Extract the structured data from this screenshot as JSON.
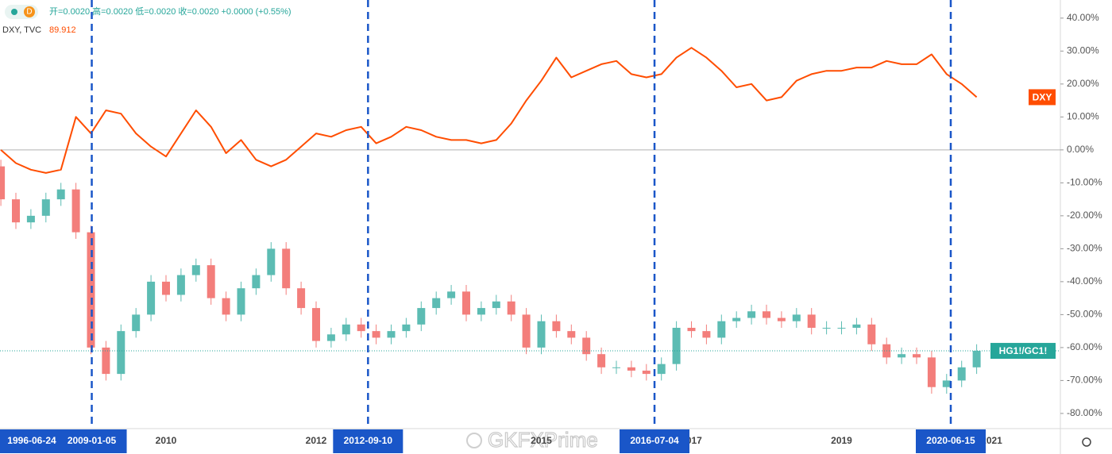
{
  "toolbar": {
    "interval": "D",
    "ohlc_text": "开=0.0020 高=0.0020 低=0.0020 收=0.0020 +0.0000 (+0.55%)",
    "symbol_info": "DXY, TVC",
    "symbol_price": "89.912"
  },
  "watermark": "GKFXPrime",
  "chart_data": {
    "type": "combo",
    "categories": [
      null,
      null,
      null,
      null,
      null,
      null,
      null,
      null,
      null,
      null,
      null,
      "2010",
      null,
      null,
      null,
      null,
      null,
      null,
      null,
      null,
      null,
      "2012",
      null,
      null,
      null,
      null,
      null,
      null,
      null,
      null,
      null,
      null,
      null,
      null,
      null,
      null,
      "2015",
      null,
      null,
      null,
      null,
      null,
      null,
      null,
      null,
      null,
      "2017",
      null,
      null,
      null,
      null,
      null,
      null,
      null,
      null,
      null,
      "2019",
      null,
      null,
      null,
      null,
      null,
      null,
      null,
      null,
      null,
      "2021"
    ],
    "ylim": [
      -84.6,
      45.5
    ],
    "yticks": [
      {
        "value": 40,
        "label": "40.00%"
      },
      {
        "value": 30,
        "label": "30.00%"
      },
      {
        "value": 20,
        "label": "20.00%"
      },
      {
        "value": 10,
        "label": "10.00%"
      },
      {
        "value": 0,
        "label": "0.00%"
      },
      {
        "value": -10,
        "label": "-10.00%"
      },
      {
        "value": -20,
        "label": "-20.00%"
      },
      {
        "value": -30,
        "label": "-30.00%"
      },
      {
        "value": -40,
        "label": "-40.00%"
      },
      {
        "value": -50,
        "label": "-50.00%"
      },
      {
        "value": -60,
        "label": "-60.00%"
      },
      {
        "value": -70,
        "label": "-70.00%"
      },
      {
        "value": -80,
        "label": "-80.00%"
      }
    ],
    "series": [
      {
        "name": "DXY",
        "type": "line",
        "color": "#ff4d00",
        "values": [
          0,
          -4,
          -6,
          -7,
          -6,
          10,
          5,
          12,
          11,
          5,
          1,
          -2,
          5,
          12,
          7,
          -1,
          3,
          -3,
          -5,
          -3,
          1,
          5,
          4,
          6,
          7,
          2,
          4,
          7,
          6,
          4,
          3,
          3,
          2,
          3,
          8,
          15,
          21,
          28,
          22,
          24,
          26,
          27,
          23,
          22,
          23,
          28,
          31,
          28,
          24,
          19,
          20,
          15,
          16,
          21,
          23,
          24,
          24,
          25,
          25,
          27,
          26,
          26,
          29,
          23,
          20,
          16,
          null
        ]
      },
      {
        "name": "HG1!/GC1!",
        "type": "candlestick",
        "up_color": "#26a69a",
        "down_color": "#ef5350",
        "color": "#26a69a",
        "open": [
          -5,
          -15,
          -22,
          -20,
          -15,
          -12,
          -25,
          -60,
          -68,
          -55,
          -50,
          -40,
          -44,
          -38,
          -35,
          -45,
          -50,
          -42,
          -38,
          -30,
          -42,
          -48,
          -58,
          -56,
          -53,
          -55,
          -57,
          -55,
          -53,
          -48,
          -45,
          -43,
          -50,
          -48,
          -46,
          -50,
          -60,
          -52,
          -55,
          -57,
          -62,
          -66,
          -66,
          -67,
          -68,
          -65,
          -54,
          -55,
          -57,
          -52,
          -51,
          -49,
          -51,
          -52,
          -50,
          -54,
          -54,
          -54,
          -53,
          -59,
          -63,
          -62,
          -63,
          -72,
          -70,
          -66,
          null
        ],
        "high": [
          -3,
          -13,
          -18,
          -13,
          -10,
          -10,
          -23,
          -58,
          -53,
          -48,
          -38,
          -38,
          -36,
          -33,
          -33,
          -43,
          -40,
          -36,
          -28,
          -28,
          -40,
          -46,
          -54,
          -51,
          -51,
          -53,
          -53,
          -51,
          -46,
          -43,
          -41,
          -41,
          -46,
          -44,
          -44,
          -48,
          -50,
          -50,
          -53,
          -55,
          -60,
          -64,
          -64,
          -65,
          -63,
          -52,
          -52,
          -53,
          -50,
          -49,
          -47,
          -47,
          -49,
          -48,
          -48,
          -52,
          -52,
          -51,
          -51,
          -57,
          -60,
          -60,
          -61,
          -68,
          -64,
          -59,
          null
        ],
        "low": [
          -17,
          -24,
          -24,
          -22,
          -17,
          -27,
          -62,
          -70,
          -70,
          -57,
          -52,
          -46,
          -46,
          -40,
          -47,
          -52,
          -52,
          -44,
          -40,
          -44,
          -50,
          -60,
          -60,
          -58,
          -57,
          -59,
          -59,
          -57,
          -55,
          -50,
          -47,
          -52,
          -52,
          -50,
          -52,
          -62,
          -62,
          -57,
          -59,
          -64,
          -68,
          -68,
          -69,
          -70,
          -70,
          -67,
          -57,
          -59,
          -59,
          -54,
          -53,
          -53,
          -54,
          -54,
          -56,
          -56,
          -56,
          -56,
          -61,
          -65,
          -65,
          -65,
          -74,
          -74,
          -72,
          -68,
          null
        ],
        "close": [
          -15,
          -22,
          -20,
          -15,
          -12,
          -25,
          -60,
          -68,
          -55,
          -50,
          -40,
          -44,
          -38,
          -35,
          -45,
          -50,
          -42,
          -38,
          -30,
          -42,
          -48,
          -58,
          -56,
          -53,
          -55,
          -57,
          -55,
          -53,
          -48,
          -45,
          -43,
          -50,
          -48,
          -46,
          -50,
          -60,
          -52,
          -55,
          -57,
          -62,
          -66,
          -66,
          -67,
          -68,
          -65,
          -54,
          -55,
          -57,
          -52,
          -51,
          -49,
          -51,
          -52,
          -50,
          -54,
          -54,
          -54,
          -53,
          -59,
          -63,
          -62,
          -63,
          -72,
          -70,
          -66,
          -61,
          null
        ]
      }
    ],
    "markers": [
      {
        "label": "2009-01-05"
      },
      {
        "label": "2012-09-10"
      },
      {
        "label": "2016-07-04"
      },
      {
        "label": "2020-06-15"
      }
    ],
    "marker_color": "#1a56c8",
    "crosshair_label": "1996-06-24"
  }
}
